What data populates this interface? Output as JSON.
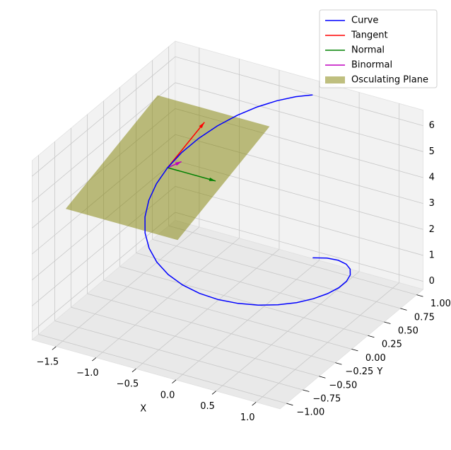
{
  "chart_data": {
    "type": "line3d",
    "xlabel": "X",
    "ylabel": "Y",
    "xlim": [
      -1.8,
      1.3
    ],
    "ylim": [
      -1.1,
      1.1
    ],
    "zlim": [
      -0.31,
      6.6
    ],
    "xticks": [
      {
        "value": -1.5,
        "label": "−1.5"
      },
      {
        "value": -1,
        "label": "−1.0"
      },
      {
        "value": -0.5,
        "label": "−0.5"
      },
      {
        "value": 0,
        "label": "0.0"
      },
      0.5,
      {
        "value": 1,
        "label": "1.0"
      }
    ],
    "yticks": [
      {
        "value": -1,
        "label": "−1.00"
      },
      {
        "value": -0.75,
        "label": "−0.75"
      },
      {
        "value": -0.5,
        "label": "−0.50"
      },
      {
        "value": -0.25,
        "label": "−0.25"
      },
      {
        "value": 0,
        "label": "0.00"
      },
      0.25,
      {
        "value": 0.5,
        "label": "0.50"
      },
      0.75,
      {
        "value": 1,
        "label": "1.00"
      }
    ],
    "zticks": [
      0,
      1,
      2,
      3,
      4,
      5,
      6
    ],
    "grid": true,
    "legend": "upper right",
    "series": [
      {
        "name": "Curve",
        "kind": "line",
        "color": "#0000ff",
        "x": [
          0,
          0.195,
          0.383,
          0.556,
          0.707,
          0.831,
          0.924,
          0.981,
          1,
          0.981,
          0.924,
          0.831,
          0.707,
          0.556,
          0.383,
          0.195,
          0,
          -0.195,
          -0.383,
          -0.556,
          -0.707,
          -0.831,
          -0.924,
          -0.981,
          -1,
          -0.981,
          -0.924,
          -0.831,
          -0.707,
          -0.556,
          -0.383,
          -0.195,
          0
        ],
        "y": [
          1,
          0.981,
          0.924,
          0.831,
          0.707,
          0.556,
          0.383,
          0.195,
          0,
          -0.195,
          -0.383,
          -0.556,
          -0.707,
          -0.831,
          -0.924,
          -0.981,
          -1,
          -0.981,
          -0.924,
          -0.831,
          -0.707,
          -0.556,
          -0.383,
          -0.195,
          0,
          0.195,
          0.383,
          0.556,
          0.707,
          0.831,
          0.924,
          0.981,
          1
        ],
        "z": [
          0,
          0.196,
          0.393,
          0.589,
          0.785,
          0.982,
          1.178,
          1.374,
          1.571,
          1.767,
          1.963,
          2.16,
          2.356,
          2.553,
          2.749,
          2.945,
          3.142,
          3.338,
          3.534,
          3.731,
          3.927,
          4.123,
          4.32,
          4.516,
          4.712,
          4.909,
          5.105,
          5.301,
          5.498,
          5.694,
          5.89,
          6.087,
          6.283
        ]
      },
      {
        "name": "Tangent",
        "kind": "arrow",
        "color": "#ff0000",
        "x": [
          -1,
          -1
        ],
        "y": [
          0,
          0.566
        ],
        "z": [
          4.712,
          5.278
        ]
      },
      {
        "name": "Normal",
        "kind": "arrow",
        "color": "#008000",
        "x": [
          -1,
          -0.4
        ],
        "y": [
          0,
          0
        ],
        "z": [
          4.712,
          4.712
        ]
      },
      {
        "name": "Binormal",
        "kind": "arrow",
        "color": "#bf00bf",
        "x": [
          -1,
          -1
        ],
        "y": [
          0,
          0.212
        ],
        "z": [
          4.712,
          4.5
        ]
      },
      {
        "name": "Osculating Plane",
        "kind": "surface",
        "color": "#808000",
        "alpha": 0.5,
        "x": [
          -1.7,
          -0.3,
          -0.3,
          -1.7
        ],
        "y": [
          -0.707,
          -0.707,
          0.707,
          0.707
        ],
        "z": [
          4.005,
          4.005,
          5.419,
          5.419
        ]
      }
    ]
  }
}
